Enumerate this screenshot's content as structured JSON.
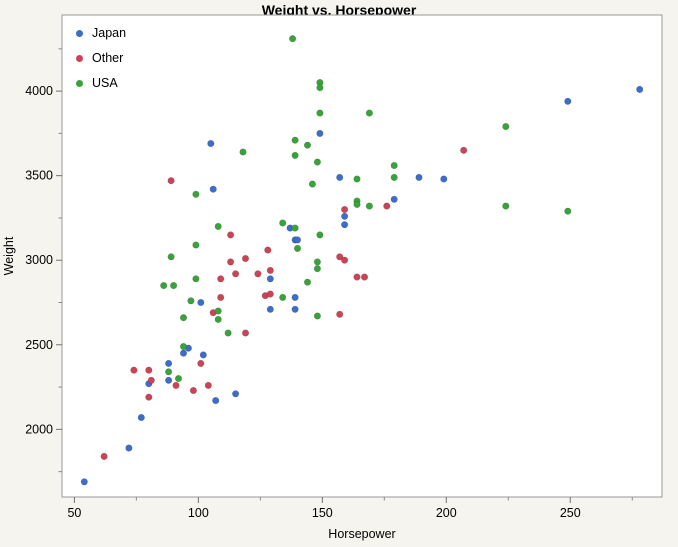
{
  "title": "Weight vs. Horsepower",
  "legend": {
    "items": [
      {
        "label": "Japan",
        "color": "#3D6CCB"
      },
      {
        "label": "Other",
        "color": "#CA4455"
      },
      {
        "label": "USA",
        "color": "#3AA23A"
      }
    ]
  },
  "chart_data": {
    "type": "scatter",
    "title": "Weight vs. Horsepower",
    "xlabel": "Horsepower",
    "ylabel": "Weight",
    "xlim": [
      45,
      287
    ],
    "ylim": [
      1600,
      4450
    ],
    "x_ticks": [
      50,
      100,
      150,
      200,
      250
    ],
    "x_minor_ticks": [
      75,
      125,
      175,
      225,
      275
    ],
    "y_ticks": [
      2000,
      2500,
      3000,
      3500,
      4000
    ],
    "y_minor_ticks": [
      1750,
      2250,
      2750,
      3250,
      3750,
      4250
    ],
    "grid": false,
    "legend_position": "top-left",
    "frame_color": "#9a9a9a",
    "plot_bg": "#ffffff",
    "series": [
      {
        "name": "Japan",
        "color": "#3D6CCB",
        "points": [
          [
            54,
            1690
          ],
          [
            72,
            1890
          ],
          [
            77,
            2070
          ],
          [
            80,
            2270
          ],
          [
            88,
            2290
          ],
          [
            88,
            2390
          ],
          [
            94,
            2450
          ],
          [
            96,
            2480
          ],
          [
            101,
            2750
          ],
          [
            102,
            2440
          ],
          [
            105,
            3690
          ],
          [
            106,
            3420
          ],
          [
            107,
            2170
          ],
          [
            115,
            2210
          ],
          [
            129,
            2890
          ],
          [
            129,
            2710
          ],
          [
            137,
            3190
          ],
          [
            139,
            3120
          ],
          [
            139,
            2780
          ],
          [
            139,
            2710
          ],
          [
            140,
            3120
          ],
          [
            149,
            3750
          ],
          [
            157,
            3490
          ],
          [
            159,
            3260
          ],
          [
            159,
            3210
          ],
          [
            179,
            3360
          ],
          [
            189,
            3490
          ],
          [
            199,
            3480
          ],
          [
            249,
            3940
          ],
          [
            278,
            4010
          ]
        ]
      },
      {
        "name": "Other",
        "color": "#CA4455",
        "points": [
          [
            62,
            1840
          ],
          [
            74,
            2350
          ],
          [
            80,
            2350
          ],
          [
            80,
            2190
          ],
          [
            81,
            2290
          ],
          [
            89,
            3470
          ],
          [
            91,
            2260
          ],
          [
            98,
            2230
          ],
          [
            101,
            2390
          ],
          [
            104,
            2260
          ],
          [
            106,
            2690
          ],
          [
            109,
            2890
          ],
          [
            109,
            2780
          ],
          [
            113,
            3150
          ],
          [
            113,
            2990
          ],
          [
            115,
            2920
          ],
          [
            119,
            3010
          ],
          [
            119,
            2570
          ],
          [
            124,
            2920
          ],
          [
            127,
            2790
          ],
          [
            128,
            3060
          ],
          [
            129,
            2940
          ],
          [
            129,
            2800
          ],
          [
            157,
            3020
          ],
          [
            157,
            2680
          ],
          [
            159,
            3300
          ],
          [
            159,
            3000
          ],
          [
            164,
            2900
          ],
          [
            167,
            2900
          ],
          [
            176,
            3320
          ],
          [
            207,
            3650
          ]
        ]
      },
      {
        "name": "USA",
        "color": "#3AA23A",
        "points": [
          [
            86,
            2850
          ],
          [
            88,
            2340
          ],
          [
            89,
            3020
          ],
          [
            90,
            2850
          ],
          [
            92,
            2300
          ],
          [
            94,
            2660
          ],
          [
            94,
            2490
          ],
          [
            97,
            2760
          ],
          [
            99,
            3390
          ],
          [
            99,
            3090
          ],
          [
            99,
            2890
          ],
          [
            108,
            3200
          ],
          [
            108,
            2700
          ],
          [
            108,
            2650
          ],
          [
            112,
            2570
          ],
          [
            118,
            3640
          ],
          [
            134,
            3220
          ],
          [
            134,
            2780
          ],
          [
            138,
            4310
          ],
          [
            139,
            3710
          ],
          [
            139,
            3620
          ],
          [
            139,
            3190
          ],
          [
            140,
            3070
          ],
          [
            144,
            3680
          ],
          [
            144,
            2870
          ],
          [
            146,
            3450
          ],
          [
            148,
            3580
          ],
          [
            148,
            2990
          ],
          [
            148,
            2950
          ],
          [
            148,
            2670
          ],
          [
            149,
            4050
          ],
          [
            149,
            4020
          ],
          [
            149,
            3870
          ],
          [
            149,
            3150
          ],
          [
            164,
            3480
          ],
          [
            164,
            3350
          ],
          [
            164,
            3330
          ],
          [
            169,
            3870
          ],
          [
            169,
            3320
          ],
          [
            179,
            3560
          ],
          [
            179,
            3490
          ],
          [
            224,
            3790
          ],
          [
            224,
            3320
          ],
          [
            249,
            3290
          ]
        ]
      }
    ]
  }
}
